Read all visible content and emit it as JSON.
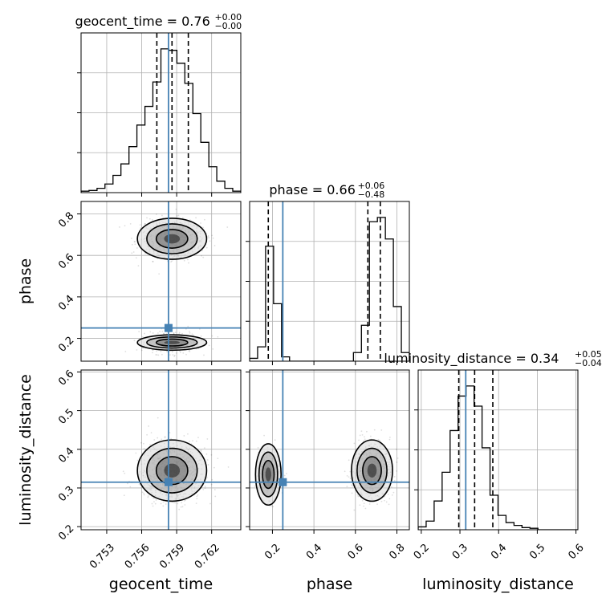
{
  "chart_data": {
    "type": "corner",
    "parameters": [
      "geocent_time",
      "phase",
      "luminosity_distance"
    ],
    "ranges": {
      "geocent_time": [
        0.7508,
        0.7645
      ],
      "phase": [
        0.09,
        0.86
      ],
      "luminosity_distance": [
        0.192,
        0.605
      ]
    },
    "ticks": {
      "geocent_time": [
        "0.753",
        "0.756",
        "0.759",
        "0.762"
      ],
      "phase": [
        "0.2",
        "0.4",
        "0.6",
        "0.8"
      ],
      "luminosity_distance": [
        "0.2",
        "0.3",
        "0.4",
        "0.5",
        "0.6"
      ]
    },
    "truth": {
      "geocent_time": 0.7583,
      "phase": 0.25,
      "luminosity_distance": 0.315,
      "color": "#4682b4"
    },
    "titles": {
      "geocent_time": {
        "label": "geocent_time = 0.76",
        "plus": "+0.00",
        "minus": "−0.00"
      },
      "phase": {
        "label": "phase = 0.66",
        "plus": "+0.06",
        "minus": "−0.48"
      },
      "luminosity_distance": {
        "label": "luminosity_distance = 0.34",
        "plus": "+0.05",
        "minus": "−0.04"
      }
    },
    "quantiles": {
      "geocent_time": [
        0.7573,
        0.7586,
        0.76
      ],
      "phase": [
        0.18,
        0.66,
        0.72
      ],
      "luminosity_distance": [
        0.297,
        0.338,
        0.385
      ]
    },
    "histograms": {
      "geocent_time": {
        "edges": [
          0.7508,
          0.75148,
          0.75217,
          0.75285,
          0.75354,
          0.75422,
          0.75491,
          0.75559,
          0.75628,
          0.75696,
          0.75765,
          0.75833,
          0.75902,
          0.7597,
          0.76039,
          0.76107,
          0.76176,
          0.76244,
          0.76313,
          0.76381,
          0.7645
        ],
        "counts": [
          0.01,
          0.015,
          0.03,
          0.06,
          0.12,
          0.2,
          0.32,
          0.47,
          0.6,
          0.77,
          1.0,
          0.99,
          0.9,
          0.76,
          0.55,
          0.35,
          0.18,
          0.08,
          0.03,
          0.01
        ]
      },
      "phase": {
        "edges": [
          0.09,
          0.1285,
          0.167,
          0.2055,
          0.244,
          0.2825,
          0.321,
          0.3595,
          0.398,
          0.4365,
          0.475,
          0.5135,
          0.552,
          0.5905,
          0.629,
          0.6675,
          0.706,
          0.7445,
          0.783,
          0.8215,
          0.86
        ],
        "counts": [
          0.02,
          0.1,
          0.8,
          0.4,
          0.03,
          0,
          0,
          0,
          0,
          0,
          0,
          0,
          0,
          0.06,
          0.25,
          0.97,
          1.0,
          0.85,
          0.38,
          0.06
        ]
      },
      "luminosity_distance": {
        "edges": [
          0.192,
          0.21265,
          0.2333,
          0.25395,
          0.2746,
          0.29525,
          0.3159,
          0.33655,
          0.3572,
          0.37785,
          0.3985,
          0.41915,
          0.4398,
          0.46045,
          0.4811,
          0.50175,
          0.5224,
          0.54305,
          0.5637,
          0.58435,
          0.605
        ],
        "counts": [
          0.02,
          0.06,
          0.2,
          0.4,
          0.69,
          0.93,
          1.0,
          0.86,
          0.57,
          0.24,
          0.1,
          0.05,
          0.03,
          0.015,
          0.01,
          0,
          0,
          0,
          0,
          0
        ]
      }
    },
    "modes": [
      {
        "geocent_time": 0.7586,
        "phase": 0.68,
        "luminosity_distance": 0.345,
        "weight": 0.72
      },
      {
        "geocent_time": 0.7586,
        "phase": 0.18,
        "luminosity_distance": 0.335,
        "weight": 0.28
      }
    ],
    "grid": true
  }
}
